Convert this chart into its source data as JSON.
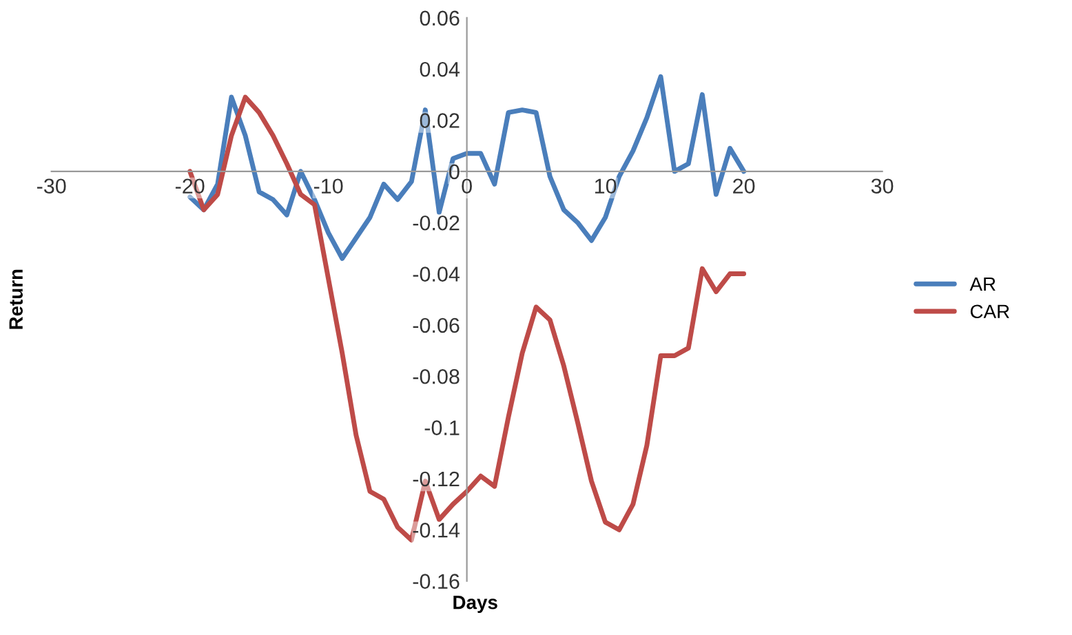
{
  "chart_data": {
    "type": "line",
    "xlabel": "Days",
    "ylabel": "Return",
    "x": [
      -20,
      -19,
      -18,
      -17,
      -16,
      -15,
      -14,
      -13,
      -12,
      -11,
      -10,
      -9,
      -8,
      -7,
      -6,
      -5,
      -4,
      -3,
      -2,
      -1,
      0,
      1,
      2,
      3,
      4,
      5,
      6,
      7,
      8,
      9,
      10,
      11,
      12,
      13,
      14,
      15,
      16,
      17,
      18,
      19,
      20
    ],
    "series": [
      {
        "name": "AR",
        "color": "#4a7ebb",
        "values": [
          -0.01,
          -0.015,
          -0.005,
          0.029,
          0.014,
          -0.008,
          -0.011,
          -0.017,
          0.0,
          -0.011,
          -0.024,
          -0.034,
          -0.026,
          -0.018,
          -0.005,
          -0.011,
          -0.004,
          0.024,
          -0.016,
          0.005,
          0.007,
          0.007,
          -0.005,
          0.023,
          0.024,
          0.023,
          -0.002,
          -0.015,
          -0.02,
          -0.027,
          -0.018,
          -0.002,
          0.008,
          0.021,
          0.037,
          0.0,
          0.003,
          0.03,
          -0.009,
          0.009,
          0.0
        ]
      },
      {
        "name": "CAR",
        "color": "#be4b48",
        "values": [
          0.0,
          -0.015,
          -0.009,
          0.014,
          0.029,
          0.023,
          0.014,
          0.003,
          -0.009,
          -0.013,
          -0.042,
          -0.071,
          -0.103,
          -0.125,
          -0.128,
          -0.139,
          -0.144,
          -0.121,
          -0.136,
          -0.13,
          -0.125,
          -0.119,
          -0.123,
          -0.096,
          -0.071,
          -0.053,
          -0.058,
          -0.076,
          -0.098,
          -0.121,
          -0.137,
          -0.14,
          -0.13,
          -0.107,
          -0.072,
          -0.072,
          -0.069,
          -0.038,
          -0.047,
          -0.04,
          -0.04
        ]
      }
    ],
    "xlim": [
      -30,
      30
    ],
    "xticks": [
      -30,
      -20,
      -10,
      0,
      10,
      20,
      30
    ],
    "ylim": [
      -0.16,
      0.06
    ],
    "yticks": [
      -0.16,
      -0.14,
      -0.12,
      -0.1,
      -0.08,
      -0.06,
      -0.04,
      -0.02,
      0,
      0.02,
      0.04,
      0.06
    ],
    "grid": false,
    "legend": "right",
    "marker": "none",
    "line_style": "solid"
  }
}
